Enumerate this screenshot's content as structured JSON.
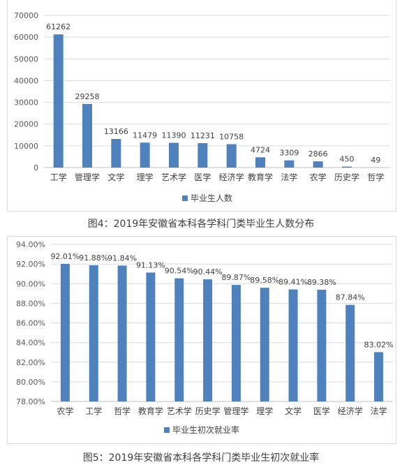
{
  "chart_data": [
    {
      "type": "bar",
      "title": "",
      "caption": "图4：2019年安徽省本科各学科门类毕业生人数分布",
      "categories": [
        "工学",
        "管理学",
        "文学",
        "理学",
        "艺术学",
        "医学",
        "经济学",
        "教育学",
        "法学",
        "农学",
        "历史学",
        "哲学"
      ],
      "series": [
        {
          "name": "毕业生人数",
          "values": [
            61262,
            29258,
            13166,
            11479,
            11390,
            11231,
            10758,
            4724,
            3309,
            2866,
            450,
            49
          ]
        }
      ],
      "value_labels": [
        "61262",
        "29258",
        "13166",
        "11479",
        "11390",
        "11231",
        "10758",
        "4724",
        "3309",
        "2866",
        "450",
        "49"
      ],
      "ylim": [
        0,
        70000
      ],
      "yticks": [
        "0",
        "10000",
        "20000",
        "30000",
        "40000",
        "50000",
        "60000",
        "70000"
      ],
      "xlabel": "",
      "ylabel": "",
      "grid": true,
      "legend": "bottom",
      "color": "#4f81bd"
    },
    {
      "type": "bar",
      "title": "",
      "caption": "图5：2019年安徽省本科各学科门类毕业生初次就业率",
      "categories": [
        "农学",
        "工学",
        "哲学",
        "教育学",
        "艺术学",
        "历史学",
        "管理学",
        "理学",
        "文学",
        "医学",
        "经济学",
        "法学"
      ],
      "series": [
        {
          "name": "毕业生初次就业率",
          "values": [
            92.01,
            91.88,
            91.84,
            91.13,
            90.54,
            90.44,
            89.87,
            89.58,
            89.41,
            89.38,
            87.84,
            83.02
          ]
        }
      ],
      "value_labels": [
        "92.01%",
        "91.88%",
        "91.84%",
        "91.13%",
        "90.54%",
        "90.44%",
        "89.87%",
        "89.58%",
        "89.41%",
        "89.38%",
        "87.84%",
        "83.02%"
      ],
      "ylim": [
        78,
        94
      ],
      "yticks": [
        "78.00%",
        "80.00%",
        "82.00%",
        "84.00%",
        "86.00%",
        "88.00%",
        "90.00%",
        "92.00%",
        "94.00%"
      ],
      "xlabel": "",
      "ylabel": "",
      "grid": true,
      "legend": "bottom",
      "color": "#4f81bd"
    }
  ]
}
